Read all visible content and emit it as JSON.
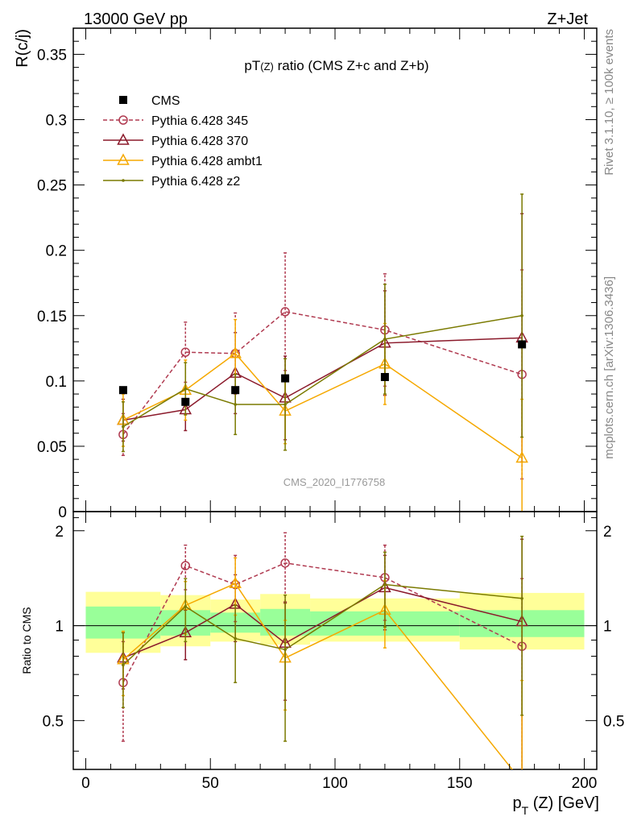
{
  "header": {
    "left": "13000 GeV pp",
    "right": "Z+Jet"
  },
  "side_labels": {
    "rivet": "Rivet 3.1.10, ≥ 100k events",
    "mcplots": "mcplots.cern.ch [arXiv:1306.3436]"
  },
  "chart_data": {
    "type": "scatter",
    "title": "pT(Z) ratio (CMS  Z+c and Z+b)",
    "title_parts": {
      "main": "pT",
      "sub": "(Z)",
      "rest": " ratio (CMS  Z+c and Z+b)"
    },
    "watermark": "CMS_2020_I1776758",
    "ylabel": "R(c/j)",
    "ratio_ylabel": "Ratio to CMS",
    "xlabel": "p_T (Z) [GeV]",
    "xlabel_parts": {
      "main": "p",
      "sub": "T",
      "rest": " (Z) [GeV]"
    },
    "xlim": [
      -5,
      205
    ],
    "ylim": [
      0,
      0.37
    ],
    "ratio_ylim": [
      0.35,
      2.3
    ],
    "xticks": [
      "0",
      "50",
      "100",
      "150",
      "200"
    ],
    "xtick_values": [
      0,
      50,
      100,
      150,
      200
    ],
    "yticks": [
      "0",
      "0.05",
      "0.1",
      "0.15",
      "0.2",
      "0.25",
      "0.3",
      "0.35"
    ],
    "ytick_values": [
      0,
      0.05,
      0.1,
      0.15,
      0.2,
      0.25,
      0.3,
      0.35
    ],
    "ratio_yticks": [
      "0.5",
      "1",
      "2"
    ],
    "ratio_ytick_values": [
      0.5,
      1,
      2
    ],
    "legend_position": "top-left",
    "data": {
      "name": "CMS",
      "color": "#000000",
      "x": [
        15,
        40,
        60,
        80,
        120,
        175
      ],
      "y": [
        0.093,
        0.084,
        0.093,
        0.102,
        0.103,
        0.128
      ]
    },
    "bands": {
      "bins": [
        [
          0,
          30
        ],
        [
          30,
          50
        ],
        [
          50,
          70
        ],
        [
          70,
          90
        ],
        [
          90,
          150
        ],
        [
          150,
          200
        ]
      ],
      "green_band": [
        [
          0.91,
          1.15
        ],
        [
          0.93,
          1.12
        ],
        [
          0.95,
          1.1
        ],
        [
          0.93,
          1.13
        ],
        [
          0.93,
          1.11
        ],
        [
          0.92,
          1.12
        ]
      ],
      "yellow_band": [
        [
          0.82,
          1.28
        ],
        [
          0.86,
          1.25
        ],
        [
          0.89,
          1.21
        ],
        [
          0.87,
          1.26
        ],
        [
          0.89,
          1.22
        ],
        [
          0.84,
          1.27
        ]
      ],
      "green_color": "#99ff99",
      "yellow_color": "#ffff99"
    },
    "series": [
      {
        "name": "Pythia 6.428 345",
        "color": "#b03a50",
        "marker": "circle",
        "dashed": true,
        "x": [
          15,
          40,
          60,
          80,
          120,
          175
        ],
        "y": [
          0.059,
          0.122,
          0.121,
          0.153,
          0.139,
          0.105
        ],
        "err": [
          0.016,
          0.023,
          0.031,
          0.045,
          0.043,
          0.08
        ],
        "ratio": [
          0.66,
          1.55,
          1.35,
          1.58,
          1.42,
          0.86
        ],
        "ratio_err": [
          0.23,
          0.25,
          0.32,
          0.39,
          0.38,
          0.55
        ]
      },
      {
        "name": "Pythia 6.428 370",
        "color": "#8b1a2b",
        "marker": "triangle",
        "dashed": false,
        "x": [
          15,
          40,
          60,
          80,
          120,
          175
        ],
        "y": [
          0.07,
          0.078,
          0.106,
          0.087,
          0.129,
          0.133
        ],
        "err": [
          0.016,
          0.016,
          0.031,
          0.032,
          0.04,
          0.095
        ],
        "ratio": [
          0.79,
          0.95,
          1.17,
          0.88,
          1.32,
          1.03
        ],
        "ratio_err": [
          0.16,
          0.17,
          0.28,
          0.3,
          0.35,
          0.85
        ]
      },
      {
        "name": "Pythia 6.428 ambt1",
        "color": "#f5a800",
        "marker": "triangle",
        "dashed": false,
        "x": [
          15,
          40,
          60,
          80,
          120,
          175
        ],
        "y": [
          0.07,
          0.093,
          0.121,
          0.077,
          0.113,
          0.041
        ],
        "err": [
          0.02,
          0.023,
          0.026,
          0.025,
          0.031,
          0.045
        ],
        "ratio": [
          0.78,
          1.16,
          1.36,
          0.79,
          1.12,
          0.32
        ],
        "ratio_err": [
          0.18,
          0.22,
          0.28,
          0.25,
          0.27,
          0.35
        ]
      },
      {
        "name": "Pythia 6.428 z2",
        "color": "#7a7a00",
        "marker": "dot",
        "dashed": false,
        "x": [
          15,
          40,
          60,
          80,
          120,
          175
        ],
        "y": [
          0.065,
          0.094,
          0.082,
          0.082,
          0.132,
          0.15
        ],
        "err": [
          0.019,
          0.02,
          0.023,
          0.035,
          0.042,
          0.093
        ],
        "ratio": [
          0.75,
          1.15,
          0.91,
          0.84,
          1.35,
          1.22
        ],
        "ratio_err": [
          0.2,
          0.26,
          0.25,
          0.41,
          0.36,
          0.7
        ]
      }
    ]
  }
}
